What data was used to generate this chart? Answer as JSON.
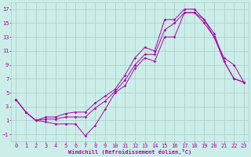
{
  "title": "",
  "xlabel": "Windchill (Refroidissement éolien,°C)",
  "ylabel": "",
  "bg_color": "#cceee8",
  "grid_color": "#aacccc",
  "line_color": "#aa00aa",
  "xlim": [
    -0.5,
    23.5
  ],
  "ylim": [
    -2,
    18
  ],
  "xticks": [
    0,
    1,
    2,
    3,
    4,
    5,
    6,
    7,
    8,
    9,
    10,
    11,
    12,
    13,
    14,
    15,
    16,
    17,
    18,
    19,
    20,
    21,
    22,
    23
  ],
  "yticks": [
    -1,
    1,
    3,
    5,
    7,
    9,
    11,
    13,
    15,
    17
  ],
  "line1_x": [
    0,
    1,
    2,
    3,
    4,
    5,
    6,
    7,
    8,
    9,
    10,
    11,
    12,
    13,
    14,
    15,
    16,
    17,
    18,
    19,
    20,
    21,
    22,
    23
  ],
  "line1_y": [
    4,
    2.2,
    1.0,
    0.8,
    0.5,
    0.5,
    0.5,
    -1.2,
    0.3,
    2.6,
    5.0,
    6.0,
    8.5,
    10.0,
    9.5,
    13.0,
    13.0,
    16.5,
    16.5,
    15.0,
    13.0,
    9.5,
    7.0,
    6.5
  ],
  "line2_x": [
    0,
    1,
    2,
    3,
    4,
    5,
    6,
    7,
    8,
    9,
    10,
    11,
    12,
    13,
    14,
    15,
    16,
    17,
    18,
    19,
    20,
    21,
    22,
    23
  ],
  "line2_y": [
    4,
    2.2,
    1.0,
    1.2,
    1.2,
    1.5,
    1.5,
    1.5,
    2.8,
    3.8,
    5.2,
    6.8,
    9.0,
    10.5,
    10.5,
    14.0,
    15.0,
    16.5,
    16.5,
    15.5,
    13.0,
    10.0,
    9.0,
    6.5
  ],
  "line3_x": [
    0,
    1,
    2,
    3,
    4,
    5,
    6,
    7,
    8,
    9,
    10,
    11,
    12,
    13,
    14,
    15,
    16,
    17,
    18,
    19,
    20,
    21,
    22,
    23
  ],
  "line3_y": [
    4,
    2.2,
    1.0,
    1.5,
    1.5,
    2.0,
    2.2,
    2.2,
    3.5,
    4.5,
    5.5,
    7.5,
    10.0,
    11.5,
    11.0,
    15.5,
    15.5,
    17.0,
    17.0,
    15.5,
    13.5,
    9.5,
    7.0,
    6.5
  ]
}
